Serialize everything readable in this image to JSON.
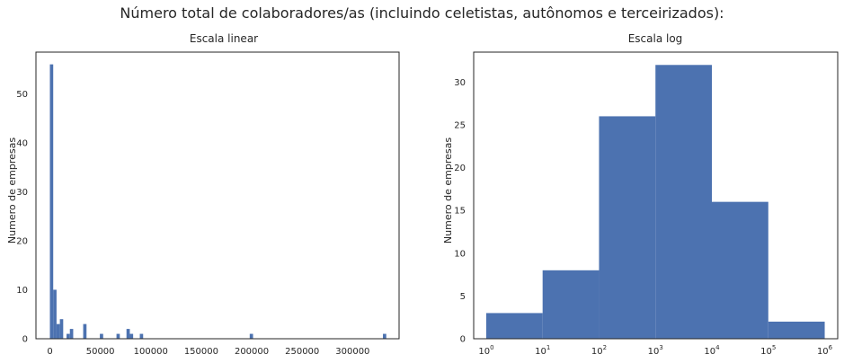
{
  "figure_title": "Número total de colaboradores/as (incluindo celetistas, autônomos e terceirizados):",
  "chart_data": [
    {
      "type": "bar",
      "title": "Escala linear",
      "xlabel": "",
      "ylabel": "Numero de empresas",
      "xlim": [
        -13800,
        346000
      ],
      "ylim": [
        0,
        58.5
      ],
      "xticks": [
        0,
        50000,
        100000,
        150000,
        200000,
        250000,
        300000
      ],
      "xtick_labels": [
        "0",
        "50000",
        "100000",
        "150000",
        "200000",
        "250000",
        "300000"
      ],
      "yticks": [
        0,
        10,
        20,
        30,
        40,
        50
      ],
      "ytick_labels": [
        "0",
        "10",
        "20",
        "30",
        "40",
        "50"
      ],
      "grid": false,
      "bin_width": 3300,
      "bins": [
        {
          "x0": 0,
          "x1": 3300,
          "count": 56
        },
        {
          "x0": 3300,
          "x1": 6600,
          "count": 10
        },
        {
          "x0": 6600,
          "x1": 9900,
          "count": 3
        },
        {
          "x0": 9900,
          "x1": 13200,
          "count": 4
        },
        {
          "x0": 16500,
          "x1": 19800,
          "count": 1
        },
        {
          "x0": 19800,
          "x1": 23100,
          "count": 2
        },
        {
          "x0": 33000,
          "x1": 36300,
          "count": 3
        },
        {
          "x0": 49500,
          "x1": 52800,
          "count": 1
        },
        {
          "x0": 66000,
          "x1": 69300,
          "count": 1
        },
        {
          "x0": 75900,
          "x1": 79200,
          "count": 2
        },
        {
          "x0": 79200,
          "x1": 82500,
          "count": 1
        },
        {
          "x0": 89100,
          "x1": 92400,
          "count": 1
        },
        {
          "x0": 198000,
          "x1": 201300,
          "count": 1
        },
        {
          "x0": 330000,
          "x1": 333300,
          "count": 1
        }
      ],
      "color": "#4c72b0"
    },
    {
      "type": "bar",
      "title": "Escala log",
      "xlabel": "",
      "ylabel": "Numero de empresas",
      "x_scale": "log",
      "xlim": [
        0.6,
        1700000.0
      ],
      "ylim": [
        0,
        33.5
      ],
      "xticks": [
        1,
        10,
        100,
        1000,
        10000,
        100000,
        1000000
      ],
      "xtick_labels": [
        {
          "base": "10",
          "exp": "0"
        },
        {
          "base": "10",
          "exp": "1"
        },
        {
          "base": "10",
          "exp": "2"
        },
        {
          "base": "10",
          "exp": "3"
        },
        {
          "base": "10",
          "exp": "4"
        },
        {
          "base": "10",
          "exp": "5"
        },
        {
          "base": "10",
          "exp": "6"
        }
      ],
      "yticks": [
        0,
        5,
        10,
        15,
        20,
        25,
        30
      ],
      "ytick_labels": [
        "0",
        "5",
        "10",
        "15",
        "20",
        "25",
        "30"
      ],
      "grid": false,
      "bins": [
        {
          "x0": 1,
          "x1": 10,
          "count": 3
        },
        {
          "x0": 10,
          "x1": 100,
          "count": 8
        },
        {
          "x0": 100,
          "x1": 1000,
          "count": 26
        },
        {
          "x0": 1000,
          "x1": 10000,
          "count": 32
        },
        {
          "x0": 10000,
          "x1": 100000,
          "count": 16
        },
        {
          "x0": 100000,
          "x1": 1000000,
          "count": 2
        }
      ],
      "color": "#4c72b0"
    }
  ]
}
